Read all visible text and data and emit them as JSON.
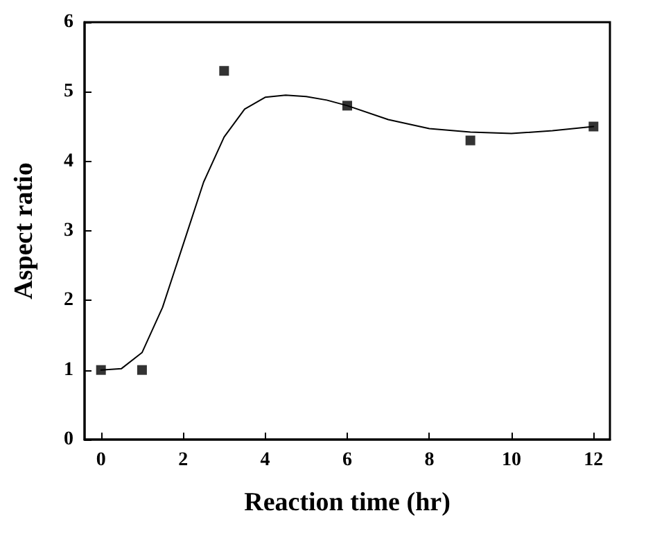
{
  "chart_data": {
    "type": "scatter",
    "xlabel": "Reaction time (hr)",
    "ylabel": "Aspect ratio",
    "marker": "square",
    "grid": false,
    "xlim": [
      -0.4,
      12.4
    ],
    "xticks": [
      0,
      2,
      4,
      6,
      8,
      10,
      12
    ],
    "ylim": [
      0,
      6
    ],
    "yticks": [
      0,
      1,
      2,
      3,
      4,
      5,
      6
    ],
    "series": [
      {
        "color": "#000000",
        "x": [
          0,
          1,
          3,
          6,
          9,
          12
        ],
        "values": [
          1,
          1,
          5.3,
          4.8,
          4.3,
          4.5
        ]
      },
      {
        "type": "line",
        "color": "#000000",
        "marker": "none",
        "line_style": "solid",
        "x": [
          0,
          0.5,
          1,
          1.5,
          2,
          2.5,
          3,
          3.5,
          4,
          4.5,
          5,
          5.5,
          6,
          7,
          8,
          9,
          10,
          11,
          12
        ],
        "values": [
          1,
          1.02,
          1.25,
          1.9,
          2.8,
          3.7,
          4.35,
          4.75,
          4.92,
          4.95,
          4.93,
          4.88,
          4.8,
          4.6,
          4.47,
          4.42,
          4.4,
          4.44,
          4.5
        ]
      }
    ]
  }
}
